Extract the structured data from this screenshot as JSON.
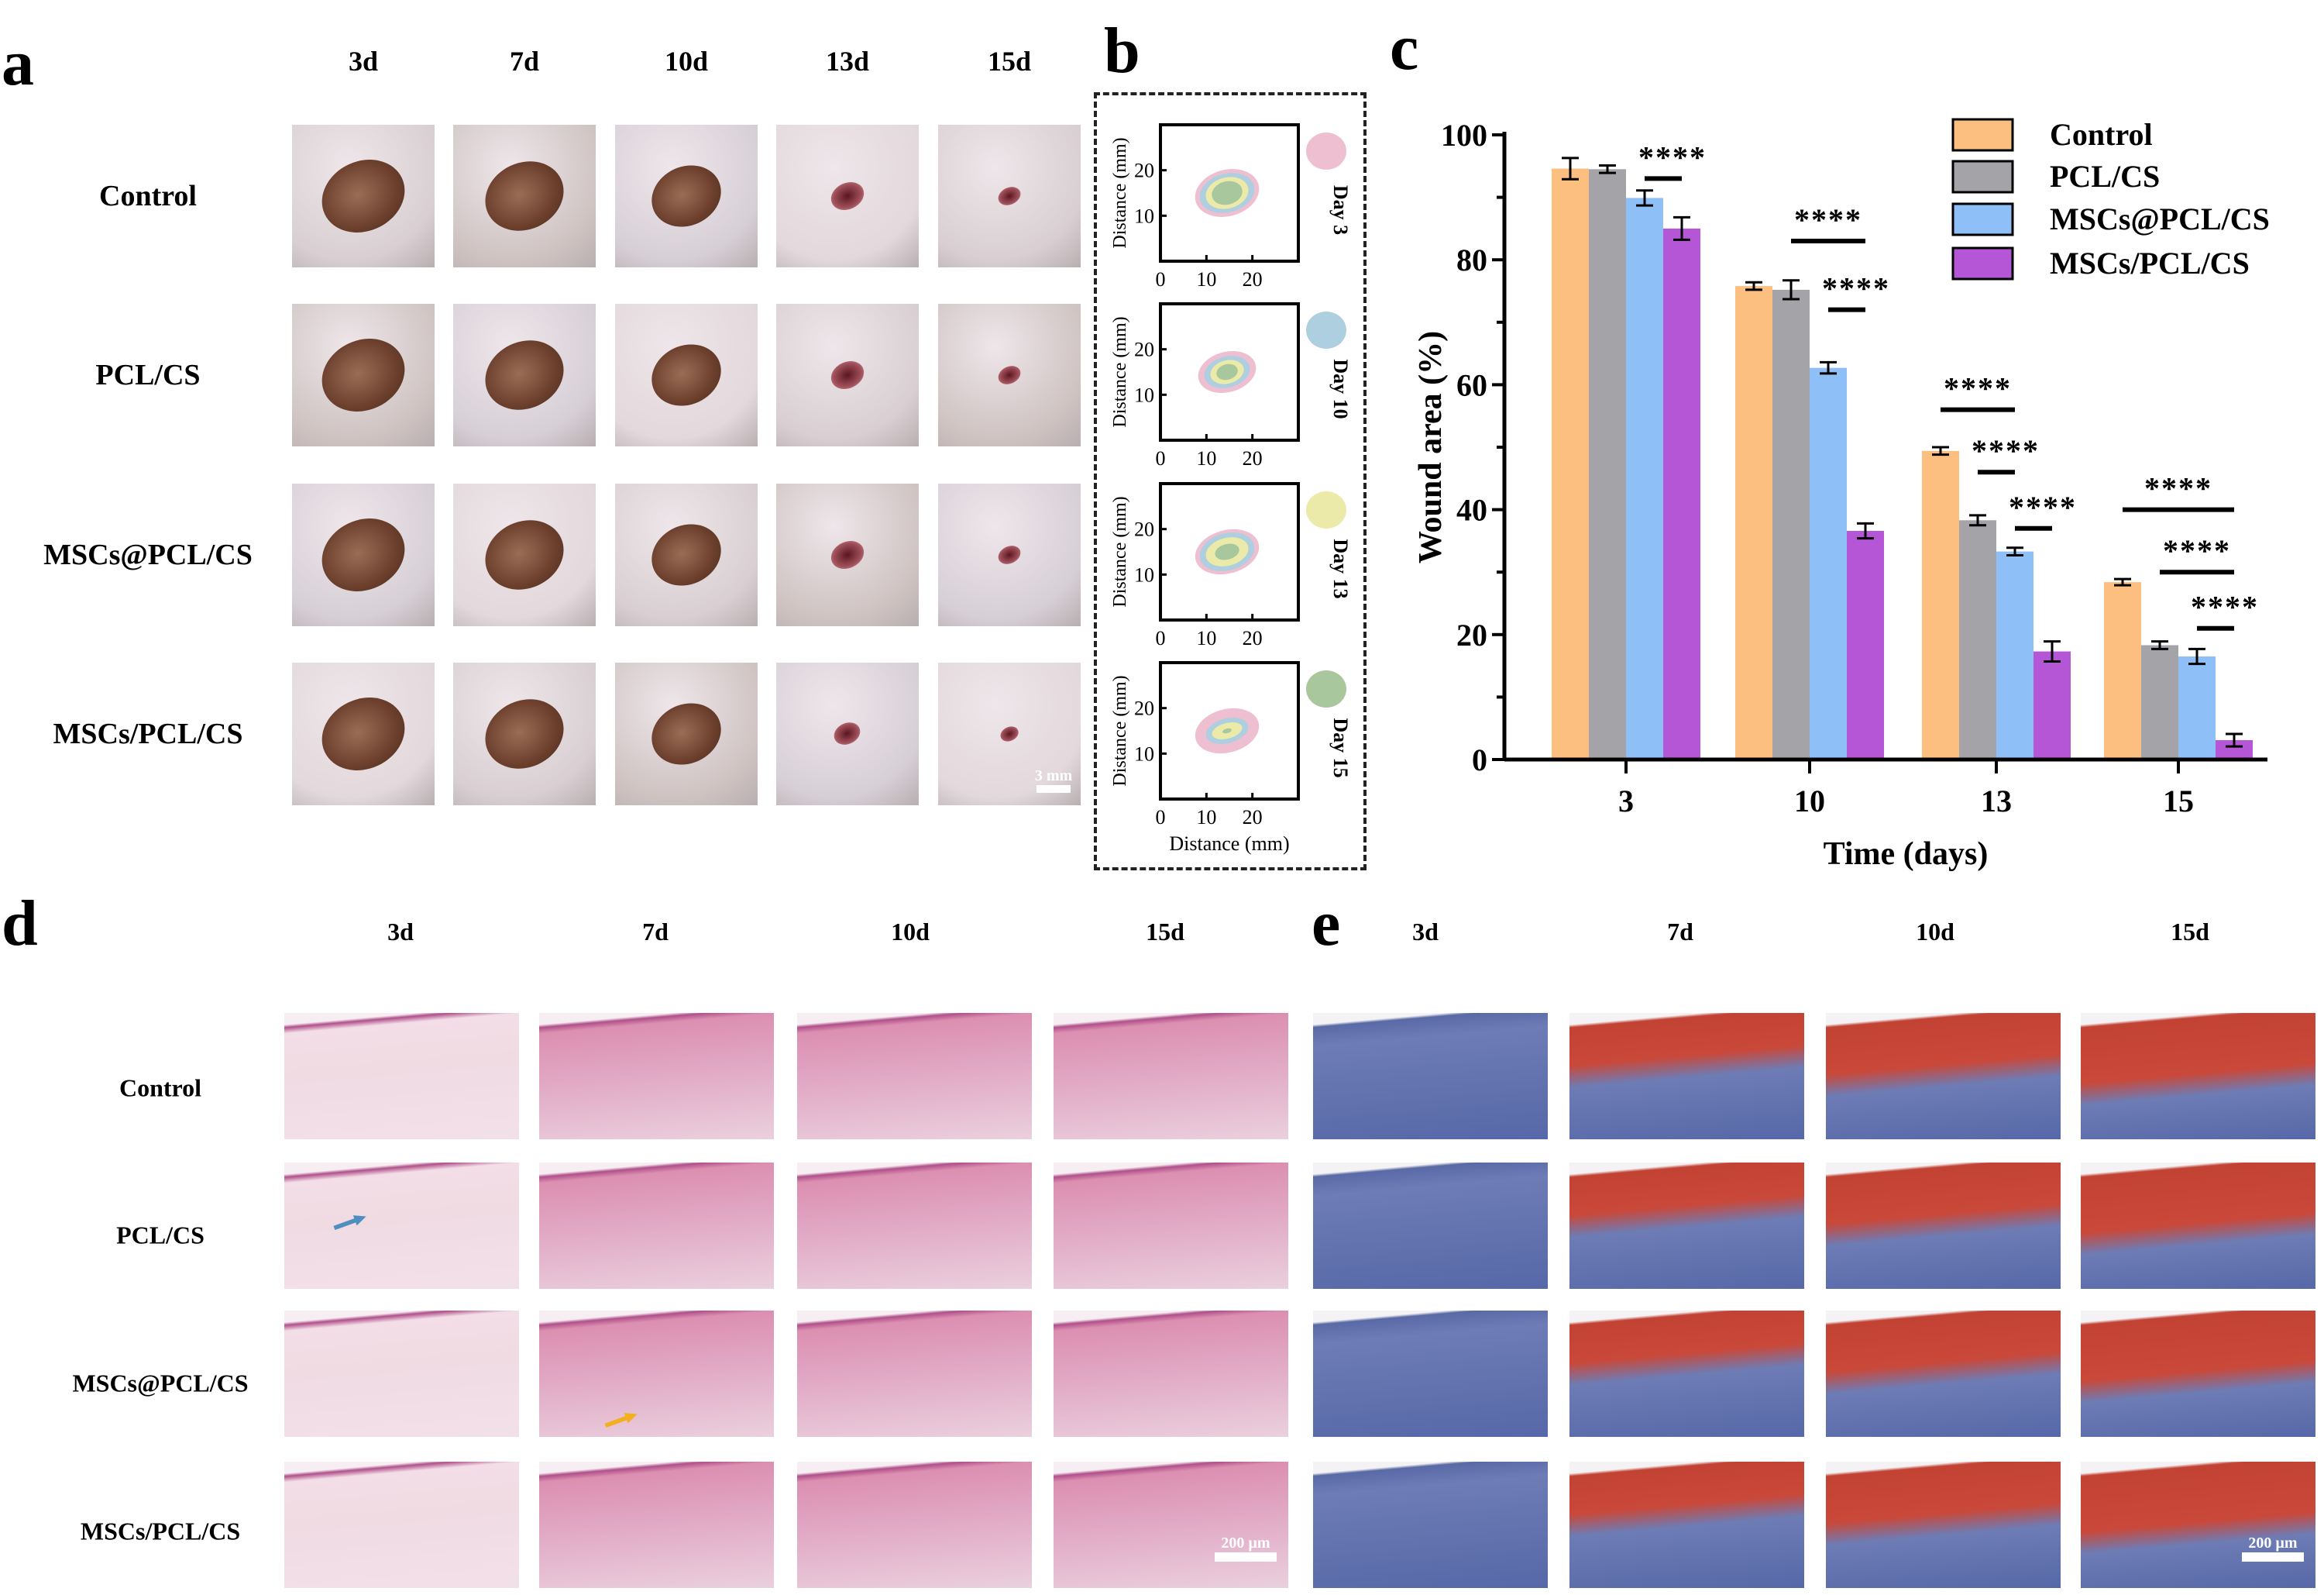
{
  "panel_a": {
    "label": "a",
    "columns": [
      "3d",
      "7d",
      "10d",
      "13d",
      "15d"
    ],
    "rows": [
      "Control",
      "PCL/CS",
      "MSCs@PCL/CS",
      "MSCs/PCL/CS"
    ],
    "scale_bar": "3 mm"
  },
  "panel_b": {
    "label": "b",
    "plots": [
      {
        "day_label": "Day 3",
        "color": "#eebfd0"
      },
      {
        "day_label": "Day 10",
        "color": "#aecfe0"
      },
      {
        "day_label": "Day 13",
        "color": "#ebeaa8"
      },
      {
        "day_label": "Day 15",
        "color": "#a8c79c"
      }
    ],
    "ylabel": "Distance (mm)",
    "xlabel": "Distance (mm)",
    "xticks": [
      "0",
      "10",
      "20"
    ],
    "yticks": [
      "10",
      "20"
    ]
  },
  "chart_data": {
    "type": "bar",
    "label": "c",
    "categories": [
      "3",
      "10",
      "13",
      "15"
    ],
    "xlabel": "Time (days)",
    "ylabel": "Wound area (%)",
    "ylim": [
      0,
      100
    ],
    "yticks": [
      "0",
      "20",
      "40",
      "60",
      "80",
      "100"
    ],
    "legend_position": "top-right",
    "series": [
      {
        "name": "Control",
        "color": "#fdbf80",
        "values": [
          94.6,
          75.8,
          49.4,
          28.4
        ],
        "errors": [
          1.7,
          0.6,
          0.6,
          0.5
        ]
      },
      {
        "name": "PCL/CS",
        "color": "#a3a3a8",
        "values": [
          94.5,
          75.2,
          38.3,
          18.3
        ],
        "errors": [
          0.6,
          1.5,
          0.8,
          0.6
        ]
      },
      {
        "name": "MSCs@PCL/CS",
        "color": "#8fbff7",
        "values": [
          89.9,
          62.7,
          33.3,
          16.5
        ],
        "errors": [
          1.2,
          0.9,
          0.6,
          1.2
        ]
      },
      {
        "name": "MSCs/PCL/CS",
        "color": "#b556d6",
        "values": [
          85.0,
          36.6,
          17.3,
          3.1
        ],
        "errors": [
          1.8,
          1.2,
          1.6,
          1.0
        ]
      }
    ],
    "significance": [
      {
        "group": 0,
        "from": 2,
        "to": 3,
        "y": 93,
        "label": "****"
      },
      {
        "group": 1,
        "from": 1,
        "to": 3,
        "y": 83,
        "label": "****"
      },
      {
        "group": 1,
        "from": 2,
        "to": 3,
        "y": 72,
        "label": "****"
      },
      {
        "group": 2,
        "from": 0,
        "to": 2,
        "y": 56,
        "label": "****"
      },
      {
        "group": 2,
        "from": 1,
        "to": 2,
        "y": 46,
        "label": "****"
      },
      {
        "group": 2,
        "from": 2,
        "to": 3,
        "y": 37,
        "label": "****"
      },
      {
        "group": 3,
        "from": 0,
        "to": 3,
        "y": 40,
        "label": "****"
      },
      {
        "group": 3,
        "from": 1,
        "to": 3,
        "y": 30,
        "label": "****"
      },
      {
        "group": 3,
        "from": 2,
        "to": 3,
        "y": 21,
        "label": "****"
      }
    ]
  },
  "panel_d": {
    "label": "d",
    "columns": [
      "3d",
      "7d",
      "10d",
      "15d"
    ],
    "rows": [
      "Control",
      "PCL/CS",
      "MSCs@PCL/CS",
      "MSCs/PCL/CS"
    ],
    "scale_bar": "200 µm"
  },
  "panel_e": {
    "label": "e",
    "columns": [
      "3d",
      "7d",
      "10d",
      "15d"
    ],
    "scale_bar": "200 µm"
  }
}
